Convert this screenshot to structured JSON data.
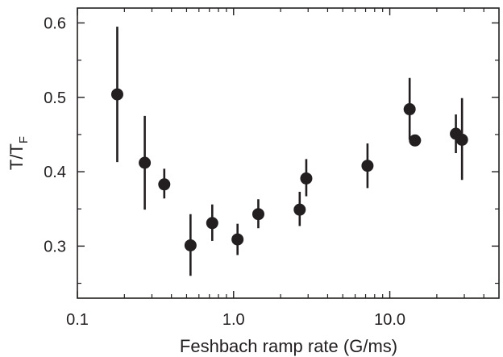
{
  "chart_data": {
    "type": "scatter",
    "title": "",
    "xlabel": "Feshbach ramp rate (G/ms)",
    "ylabel": {
      "main": "T/T",
      "subscript": "F"
    },
    "xscale": "log",
    "xlim": [
      0.1,
      50
    ],
    "ylim": [
      0.23,
      0.62
    ],
    "xticks": [
      0.1,
      1.0,
      10.0
    ],
    "xtick_labels": [
      "0.1",
      "1.0",
      "10.0"
    ],
    "yticks": [
      0.3,
      0.4,
      0.5,
      0.6
    ],
    "ytick_labels": [
      "0.3",
      "0.4",
      "0.5",
      "0.6"
    ],
    "grid": false,
    "legend": "none",
    "colors": {
      "marker": "#231f20",
      "axis": "#231f20"
    },
    "points": [
      {
        "x": 0.18,
        "y": 0.504,
        "yerr_low": 0.413,
        "yerr_high": 0.595
      },
      {
        "x": 0.27,
        "y": 0.412,
        "yerr_low": 0.349,
        "yerr_high": 0.475
      },
      {
        "x": 0.36,
        "y": 0.383,
        "yerr_low": 0.364,
        "yerr_high": 0.404
      },
      {
        "x": 0.53,
        "y": 0.301,
        "yerr_low": 0.26,
        "yerr_high": 0.343
      },
      {
        "x": 0.73,
        "y": 0.331,
        "yerr_low": 0.307,
        "yerr_high": 0.356
      },
      {
        "x": 1.06,
        "y": 0.309,
        "yerr_low": 0.288,
        "yerr_high": 0.33
      },
      {
        "x": 1.44,
        "y": 0.343,
        "yerr_low": 0.324,
        "yerr_high": 0.363
      },
      {
        "x": 2.65,
        "y": 0.349,
        "yerr_low": 0.327,
        "yerr_high": 0.373
      },
      {
        "x": 2.92,
        "y": 0.391,
        "yerr_low": 0.367,
        "yerr_high": 0.417
      },
      {
        "x": 7.2,
        "y": 0.408,
        "yerr_low": 0.378,
        "yerr_high": 0.438
      },
      {
        "x": 13.4,
        "y": 0.484,
        "yerr_low": 0.443,
        "yerr_high": 0.526
      },
      {
        "x": 14.5,
        "y": 0.442,
        "yerr_low": 0.442,
        "yerr_high": 0.442
      },
      {
        "x": 26.5,
        "y": 0.451,
        "yerr_low": 0.425,
        "yerr_high": 0.477
      },
      {
        "x": 29.0,
        "y": 0.443,
        "yerr_low": 0.389,
        "yerr_high": 0.499
      }
    ]
  }
}
